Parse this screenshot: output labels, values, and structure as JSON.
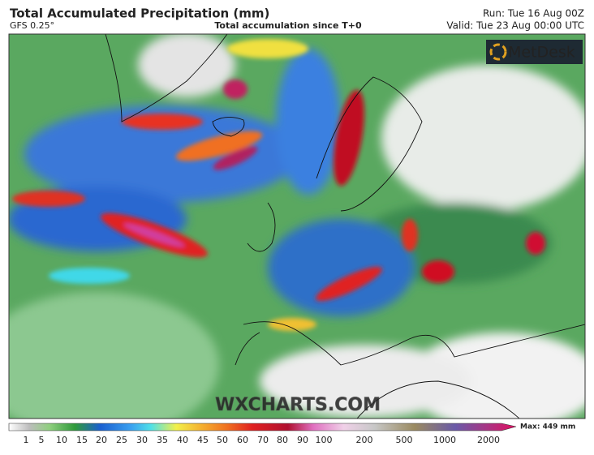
{
  "header": {
    "title": "Total Accumulated Precipitation (mm)",
    "model": "GFS 0.25°",
    "subtitle": "Total accumulation since T+0",
    "run": "Run: Tue 16 Aug 00Z",
    "valid": "Valid: Tue 23 Aug 00:00 UTC"
  },
  "logo": "MetDesk",
  "watermark": "WXCHARTS.COM",
  "colorbar": {
    "labels": [
      1,
      5,
      10,
      15,
      20,
      25,
      30,
      35,
      40,
      45,
      50,
      60,
      70,
      80,
      90,
      100,
      200,
      500,
      1000,
      2000
    ],
    "max": "Max: 449 mm"
  }
}
